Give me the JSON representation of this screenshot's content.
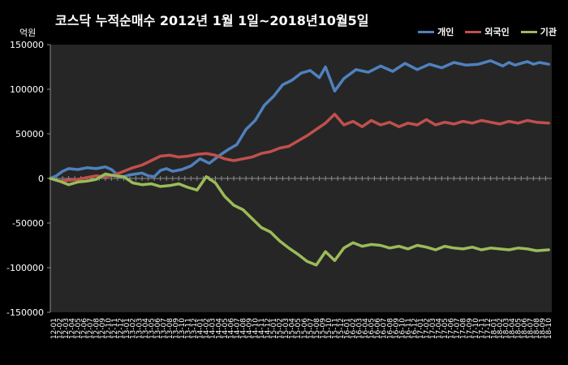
{
  "chart_data": {
    "type": "line",
    "title": "코스닥 누적순매수 2012년 1월 1일~2018년10월5일",
    "ylabel": "억원",
    "ylim": [
      -150000,
      150000
    ],
    "yticks": [
      -150000,
      -100000,
      -50000,
      0,
      50000,
      100000,
      150000
    ],
    "ytick_labels": [
      "-150000",
      "-100000",
      "-50000",
      "0",
      "50000",
      "100000",
      "150000"
    ],
    "grid": false,
    "legend_position": "top-right",
    "xtick_labels": [
      "12-01",
      "12-02",
      "12-03",
      "12-04",
      "12-05",
      "12-06",
      "12-07",
      "12-08",
      "12-09",
      "12-10",
      "12-11",
      "12-12",
      "13-01",
      "13-02",
      "13-03",
      "13-04",
      "13-05",
      "13-06",
      "13-07",
      "13-08",
      "13-09",
      "13-10",
      "13-11",
      "13-12",
      "14-01",
      "14-02",
      "14-03",
      "14-04",
      "14-05",
      "14-06",
      "14-07",
      "14-08",
      "14-09",
      "14-10",
      "14-11",
      "14-12",
      "15-01",
      "15-02",
      "15-03",
      "15-04",
      "15-05",
      "15-06",
      "15-07",
      "15-08",
      "15-09",
      "15-10",
      "15-11",
      "15-12",
      "16-01",
      "16-02",
      "16-03",
      "16-04",
      "16-05",
      "16-06",
      "16-07",
      "16-08",
      "16-09",
      "16-10",
      "16-11",
      "16-12",
      "17-01",
      "17-02",
      "17-03",
      "17-04",
      "17-05",
      "17-06",
      "17-07",
      "17-08",
      "17-09",
      "17-10",
      "17-11",
      "17-12",
      "18-01",
      "18-02",
      "18-03",
      "18-04",
      "18-05",
      "18-06",
      "18-07",
      "18-08",
      "18-09",
      "18-10"
    ],
    "series": [
      {
        "name": "개인",
        "color": "#4f81bd",
        "x": [
          0,
          2,
          4,
          6,
          9,
          12,
          15,
          18,
          20,
          23,
          26,
          28,
          30,
          32,
          34,
          36,
          38,
          40,
          43,
          46,
          49,
          52,
          55,
          58,
          61,
          64,
          67,
          70,
          73,
          76,
          79,
          82,
          85,
          88,
          90,
          93,
          96,
          100,
          104,
          108,
          112,
          116,
          120,
          124,
          128,
          132,
          136,
          140,
          144,
          148,
          150,
          152,
          154,
          156,
          158,
          160,
          163
        ],
        "y": [
          0,
          3000,
          8000,
          11000,
          10000,
          12000,
          11000,
          13000,
          10000,
          1000,
          4000,
          5000,
          6000,
          3000,
          2000,
          9000,
          11000,
          8000,
          10000,
          14000,
          22000,
          17000,
          25000,
          32000,
          38000,
          55000,
          65000,
          82000,
          92000,
          105000,
          110000,
          118000,
          121000,
          113000,
          125000,
          98000,
          112000,
          122000,
          119000,
          126000,
          120000,
          129000,
          122000,
          128000,
          124000,
          130000,
          127000,
          128000,
          132000,
          126000,
          130000,
          127000,
          129000,
          131000,
          128000,
          130000,
          128000
        ]
      },
      {
        "name": "외국인",
        "color": "#c0504d",
        "x": [
          0,
          3,
          6,
          9,
          12,
          15,
          18,
          21,
          24,
          27,
          30,
          33,
          36,
          39,
          42,
          45,
          48,
          51,
          54,
          57,
          60,
          63,
          66,
          69,
          72,
          75,
          78,
          81,
          84,
          87,
          90,
          93,
          96,
          99,
          102,
          105,
          108,
          111,
          114,
          117,
          120,
          123,
          126,
          129,
          132,
          135,
          138,
          141,
          144,
          147,
          150,
          153,
          156,
          159,
          163
        ],
        "y": [
          0,
          -3000,
          -2000,
          -1000,
          1000,
          3000,
          2000,
          4000,
          8000,
          12000,
          15000,
          20000,
          25000,
          26000,
          24000,
          25000,
          27000,
          28000,
          26000,
          22000,
          20000,
          22000,
          24000,
          28000,
          30000,
          34000,
          36000,
          42000,
          48000,
          55000,
          62000,
          72000,
          60000,
          64000,
          58000,
          65000,
          60000,
          63000,
          58000,
          62000,
          60000,
          66000,
          60000,
          63000,
          61000,
          64000,
          62000,
          65000,
          63000,
          61000,
          64000,
          62000,
          65000,
          63000,
          62000
        ]
      },
      {
        "name": "기관",
        "color": "#9bbb59",
        "x": [
          0,
          3,
          6,
          9,
          12,
          15,
          18,
          21,
          24,
          27,
          30,
          33,
          36,
          39,
          42,
          45,
          48,
          51,
          54,
          57,
          60,
          63,
          66,
          69,
          72,
          75,
          78,
          81,
          84,
          87,
          90,
          93,
          96,
          99,
          102,
          105,
          108,
          111,
          114,
          117,
          120,
          123,
          126,
          129,
          132,
          135,
          138,
          141,
          144,
          147,
          150,
          153,
          156,
          159,
          163
        ],
        "y": [
          0,
          -3000,
          -7000,
          -4000,
          -3000,
          -1000,
          5000,
          3000,
          2000,
          -5000,
          -7000,
          -6000,
          -9000,
          -8000,
          -6000,
          -10000,
          -13000,
          2000,
          -5000,
          -20000,
          -30000,
          -35000,
          -45000,
          -55000,
          -60000,
          -70000,
          -78000,
          -85000,
          -93000,
          -97000,
          -82000,
          -92000,
          -78000,
          -72000,
          -76000,
          -74000,
          -75000,
          -78000,
          -76000,
          -79000,
          -75000,
          -77000,
          -80000,
          -76000,
          -78000,
          -79000,
          -77000,
          -80000,
          -78000,
          -79000,
          -80000,
          -78000,
          -79000,
          -81000,
          -80000
        ]
      }
    ]
  }
}
